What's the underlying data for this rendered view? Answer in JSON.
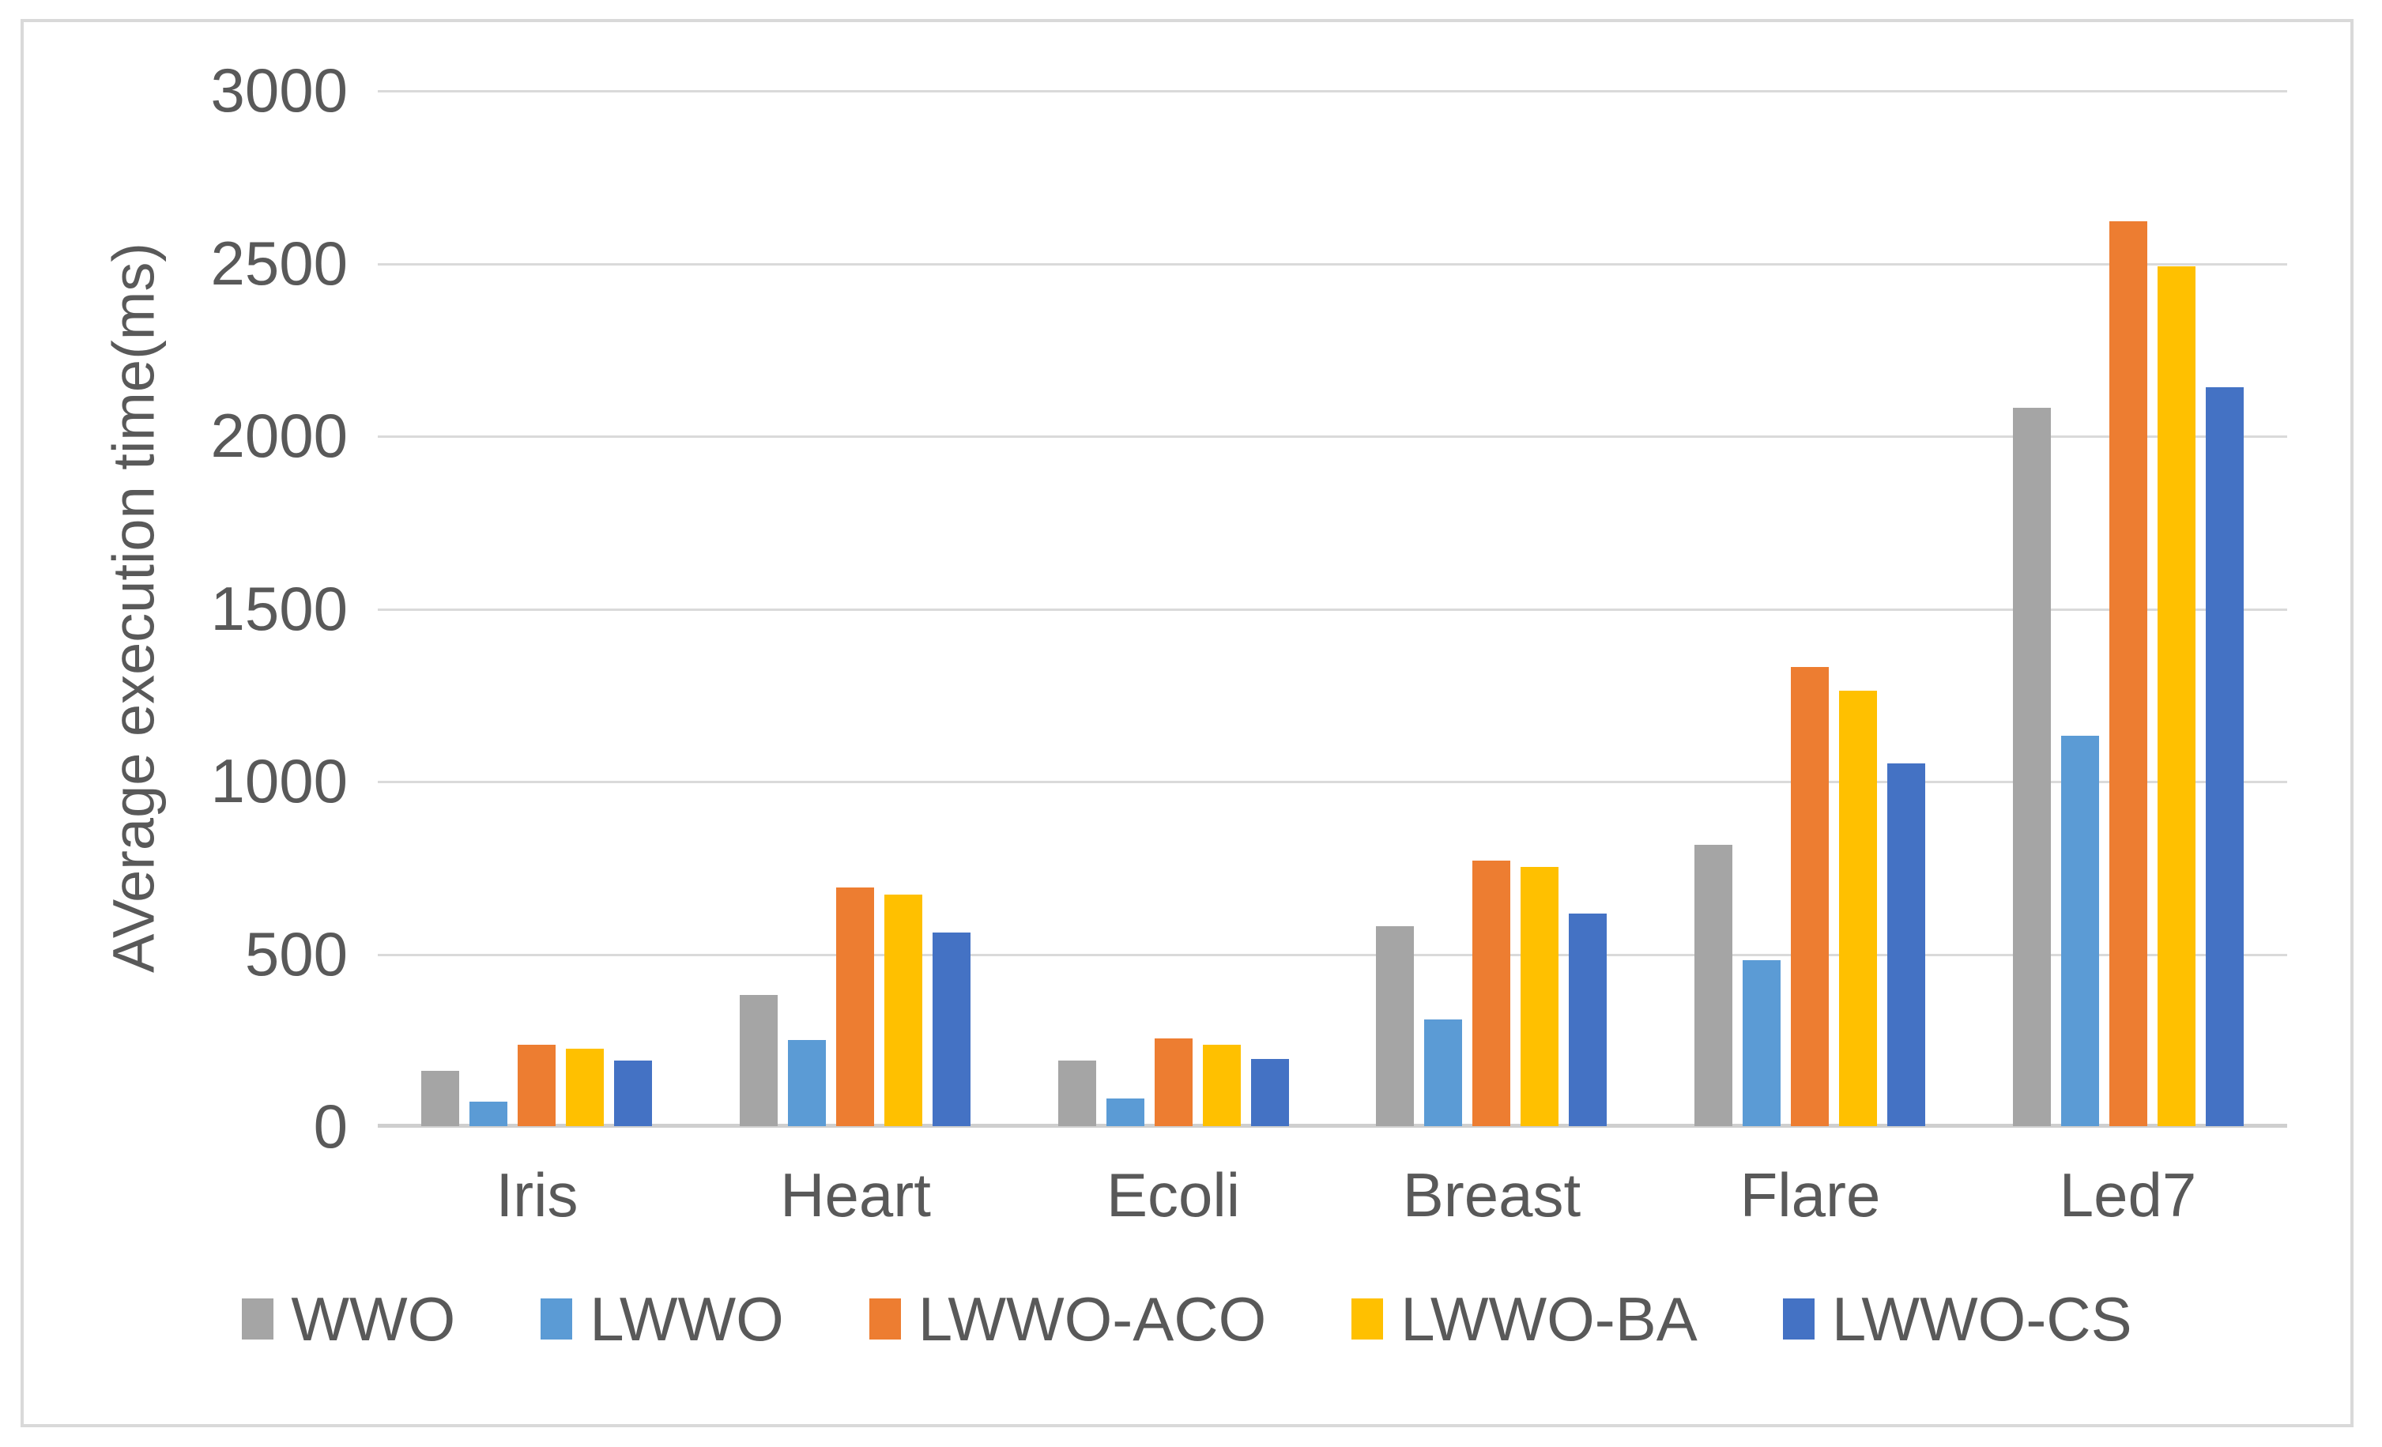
{
  "figure": {
    "kind": "bar-chart-screenshot"
  },
  "chart_data": {
    "type": "bar",
    "title": "",
    "xlabel": "",
    "ylabel": "AVerage execution time(ms)",
    "ylim": [
      0,
      3000
    ],
    "ytick_interval": 500,
    "yticks": [
      0,
      500,
      1000,
      1500,
      2000,
      2500,
      3000
    ],
    "grid": true,
    "legend_position": "bottom",
    "categories": [
      "Iris",
      "Heart",
      "Ecoli",
      "Breast",
      "Flare",
      "Led7"
    ],
    "series": [
      {
        "name": "WWO",
        "color": "#A5A5A5",
        "values": [
          160,
          380,
          190,
          580,
          815,
          2080
        ]
      },
      {
        "name": "LWWO",
        "color": "#5B9BD5",
        "values": [
          70,
          250,
          80,
          310,
          480,
          1130
        ]
      },
      {
        "name": "LWWO-ACO",
        "color": "#ED7D31",
        "values": [
          235,
          690,
          255,
          770,
          1330,
          2620
        ]
      },
      {
        "name": "LWWO-BA",
        "color": "#FFC000",
        "values": [
          225,
          670,
          235,
          750,
          1260,
          2490
        ]
      },
      {
        "name": "LWWO-CS",
        "color": "#4472C4",
        "values": [
          190,
          560,
          195,
          615,
          1050,
          2140
        ]
      }
    ],
    "style": {
      "gridline_color": "#dadada",
      "axis_line_color": "#cfcfcf",
      "tick_label_color": "#595959",
      "frame_color": "#d9d9d9",
      "background": "#ffffff"
    }
  }
}
